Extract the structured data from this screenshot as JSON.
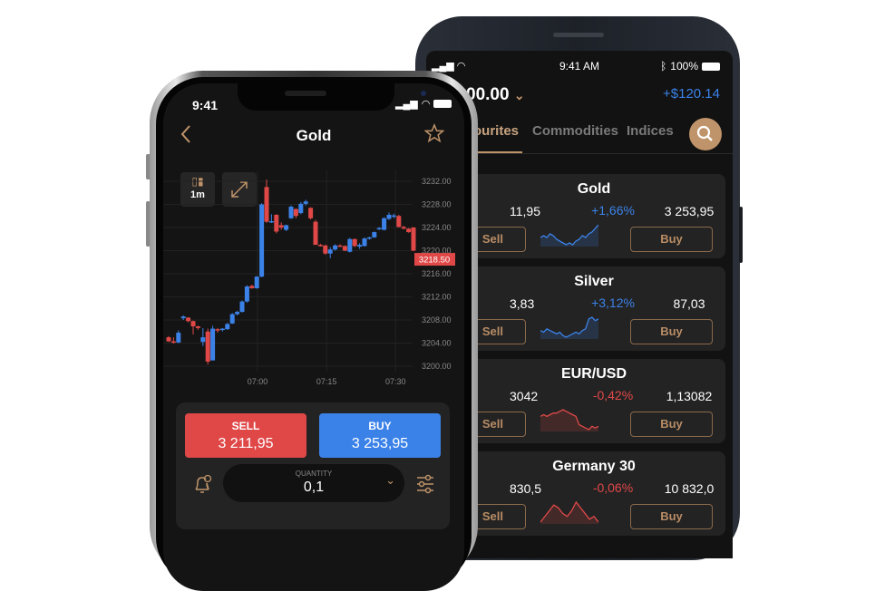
{
  "back_phone": {
    "status": {
      "time": "9:41 AM",
      "battery": "100%"
    },
    "balance": "00.00",
    "pnl": "+$120.14",
    "tabs": [
      {
        "label": "ourites",
        "active": true
      },
      {
        "label": "Commodities"
      },
      {
        "label": "Indices"
      }
    ],
    "accent": "#c0946a",
    "up_color": "#3b82e8",
    "down_color": "#e04848",
    "cards": [
      {
        "name": "Gold",
        "sell": "11,95",
        "change": "+1,66%",
        "dir": "up",
        "buy": "3 253,95",
        "sell_label": "Sell",
        "buy_label": "Buy",
        "spark": [
          5,
          6,
          5,
          7,
          6,
          4,
          3,
          2,
          1,
          2,
          1,
          3,
          4,
          6,
          5,
          7,
          8,
          10,
          12
        ]
      },
      {
        "name": "Silver",
        "sell": "3,83",
        "change": "+3,12%",
        "dir": "up",
        "buy": "87,03",
        "sell_label": "Sell",
        "buy_label": "Buy",
        "spark": [
          4,
          3,
          5,
          4,
          3,
          2,
          3,
          1,
          0,
          1,
          2,
          3,
          2,
          4,
          5,
          11,
          12,
          10,
          11
        ]
      },
      {
        "name": "EUR/USD",
        "sell": "3042",
        "change": "-0,42%",
        "dir": "down",
        "buy": "1,13082",
        "sell_label": "Sell",
        "buy_label": "Buy",
        "spark": [
          8,
          9,
          8,
          9,
          10,
          10,
          11,
          12,
          11,
          10,
          9,
          8,
          3,
          2,
          1,
          0,
          2,
          1,
          2
        ]
      },
      {
        "name": "Germany 30",
        "sell": "830,5",
        "change": "-0,06%",
        "dir": "down",
        "buy": "10 832,0",
        "sell_label": "Sell",
        "buy_label": "Buy",
        "spark": [
          2,
          4,
          6,
          8,
          7,
          5,
          4,
          6,
          9,
          7,
          5,
          3,
          4,
          2
        ]
      }
    ]
  },
  "front_phone": {
    "status": {
      "time": "9:41"
    },
    "title": "Gold",
    "timeframe": "1m",
    "chart_data": {
      "type": "candlestick",
      "y_ticks": [
        "3232.00",
        "3228.00",
        "3224.00",
        "3220.00",
        "3216.00",
        "3212.00",
        "3208.00",
        "3204.00",
        "3200.00"
      ],
      "ylim": [
        3199,
        3234
      ],
      "x_ticks": [
        "07:00",
        "07:15",
        "07:30"
      ],
      "current_price": "3218.50",
      "ohlc": [
        [
          3205,
          3205.2,
          3204.2,
          3204.3
        ],
        [
          3204.3,
          3205,
          3203.9,
          3204.1
        ],
        [
          3204.1,
          3206.2,
          3204,
          3205.8
        ],
        [
          3208.3,
          3208.8,
          3208,
          3208.6
        ],
        [
          3208.4,
          3208.5,
          3207.6,
          3207.8
        ],
        [
          3207.8,
          3207.9,
          3205.5,
          3206.9
        ],
        [
          3206.9,
          3207,
          3206.3,
          3206.6
        ],
        [
          3204.2,
          3206.6,
          3203.5,
          3205
        ],
        [
          3206,
          3206.5,
          3200.3,
          3200.8
        ],
        [
          3201,
          3207,
          3201,
          3206.5
        ],
        [
          3206.4,
          3206.6,
          3205.8,
          3206.2
        ],
        [
          3206.3,
          3206.6,
          3206,
          3206.5
        ],
        [
          3206.4,
          3207.5,
          3206.3,
          3207.3
        ],
        [
          3207.4,
          3209.2,
          3207.3,
          3209
        ],
        [
          3209,
          3209.6,
          3208.8,
          3209.4
        ],
        [
          3209.4,
          3211.4,
          3209.3,
          3211.2
        ],
        [
          3211.2,
          3214,
          3211,
          3213.8
        ],
        [
          3213.9,
          3214.1,
          3213.4,
          3213.5
        ],
        [
          3213.5,
          3215.6,
          3213.4,
          3215.5
        ],
        [
          3215.5,
          3228.2,
          3215.4,
          3228
        ],
        [
          3231,
          3232.3,
          3224.8,
          3225
        ],
        [
          3225.1,
          3226.3,
          3224.8,
          3225.1
        ],
        [
          3226.2,
          3226.3,
          3223,
          3223.3
        ],
        [
          3224.4,
          3224.9,
          3223.6,
          3224
        ],
        [
          3223.6,
          3224.5,
          3223.4,
          3224.4
        ],
        [
          3225.6,
          3227.8,
          3225.5,
          3227.6
        ],
        [
          3227.2,
          3227.3,
          3225.6,
          3226
        ],
        [
          3226.5,
          3228.4,
          3226.3,
          3228.1
        ],
        [
          3228.1,
          3228.8,
          3227.8,
          3228.5
        ],
        [
          3227.4,
          3227.5,
          3225.4,
          3225.6
        ],
        [
          3225,
          3225.3,
          3221.1,
          3221
        ],
        [
          3221,
          3221.2,
          3220.7,
          3220.9
        ],
        [
          3220.9,
          3221,
          3219.3,
          3219.5
        ],
        [
          3219.5,
          3220.6,
          3218.7,
          3220.2
        ],
        [
          3220.2,
          3221.1,
          3220,
          3220.9
        ],
        [
          3220.9,
          3221.1,
          3220.6,
          3220.8
        ],
        [
          3220.8,
          3220.9,
          3219.9,
          3220
        ],
        [
          3219.8,
          3222.2,
          3219.7,
          3222
        ],
        [
          3222,
          3222.1,
          3220.6,
          3220.8
        ],
        [
          3220.7,
          3221.3,
          3220.3,
          3221
        ],
        [
          3220.8,
          3222.3,
          3220.7,
          3222.1
        ],
        [
          3222.2,
          3222.4,
          3221.9,
          3222.3
        ],
        [
          3222.3,
          3223.3,
          3222.2,
          3223.2
        ],
        [
          3223.8,
          3224.1,
          3223.6,
          3223.9
        ],
        [
          3223.6,
          3225.8,
          3223.5,
          3225.6
        ],
        [
          3225.5,
          3226.6,
          3225.3,
          3226.2
        ],
        [
          3226,
          3226.4,
          3225.6,
          3226.1
        ],
        [
          3226,
          3226.2,
          3224,
          3224.1
        ],
        [
          3224.1,
          3224.3,
          3223.7,
          3223.8
        ],
        [
          3223.8,
          3223.9,
          3223.1,
          3223.2
        ],
        [
          3224,
          3224.1,
          3219.9,
          3220
        ]
      ]
    },
    "trade": {
      "sell_label": "SELL",
      "sell_price": "3 211,95",
      "buy_label": "BUY",
      "buy_price": "3 253,95",
      "quantity_label": "QUANTITY",
      "quantity": "0,1"
    }
  }
}
